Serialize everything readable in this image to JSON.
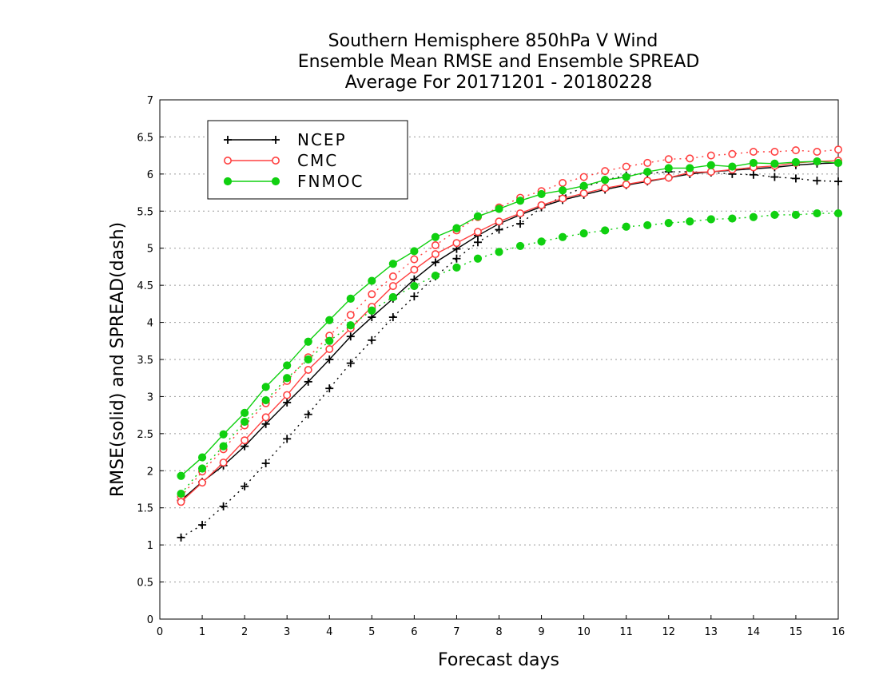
{
  "chart_data": {
    "type": "line",
    "title": [
      "Southern Hemisphere 850hPa V Wind",
      "Ensemble Mean RMSE and Ensemble SPREAD",
      "Average For 20171201 - 20180228"
    ],
    "xlabel": "Forecast days",
    "ylabel": "RMSE(solid) and SPREAD(dash)",
    "xlim": [
      0,
      16
    ],
    "ylim": [
      0,
      7
    ],
    "xticks": [
      "0",
      "1",
      "2",
      "3",
      "4",
      "5",
      "6",
      "7",
      "8",
      "9",
      "10",
      "11",
      "12",
      "13",
      "14",
      "15",
      "16"
    ],
    "yticks": [
      "0",
      "0.5",
      "1",
      "1.5",
      "2",
      "2.5",
      "3",
      "3.5",
      "4",
      "4.5",
      "5",
      "5.5",
      "6",
      "6.5",
      "7"
    ],
    "grid": true,
    "legend_position": "top-left",
    "x": [
      0.5,
      1,
      1.5,
      2,
      2.5,
      3,
      3.5,
      4,
      4.5,
      5,
      5.5,
      6,
      6.5,
      7,
      7.5,
      8,
      8.5,
      9,
      9.5,
      10,
      10.5,
      11,
      11.5,
      12,
      12.5,
      13,
      13.5,
      14,
      14.5,
      15,
      15.5,
      16
    ],
    "series": [
      {
        "name": "NCEP",
        "color": "#000000",
        "marker": "plus",
        "rmse": [
          1.6,
          1.85,
          2.07,
          2.33,
          2.63,
          2.92,
          3.2,
          3.5,
          3.81,
          4.07,
          4.32,
          4.58,
          4.81,
          4.99,
          5.17,
          5.33,
          5.45,
          5.56,
          5.65,
          5.72,
          5.79,
          5.85,
          5.9,
          5.95,
          6.0,
          6.03,
          6.05,
          6.07,
          6.09,
          6.12,
          6.14,
          6.15
        ],
        "spread": [
          1.1,
          1.27,
          1.52,
          1.79,
          2.1,
          2.43,
          2.76,
          3.11,
          3.45,
          3.76,
          4.07,
          4.35,
          4.62,
          4.86,
          5.08,
          5.25,
          5.33,
          5.55,
          5.7,
          5.82,
          5.92,
          5.98,
          6.01,
          6.03,
          6.03,
          6.02,
          6.0,
          5.99,
          5.96,
          5.94,
          5.91,
          5.9
        ]
      },
      {
        "name": "CMC",
        "color": "#ff4040",
        "marker": "open-circle",
        "rmse": [
          1.58,
          1.84,
          2.11,
          2.41,
          2.72,
          3.02,
          3.36,
          3.64,
          3.92,
          4.21,
          4.49,
          4.71,
          4.92,
          5.07,
          5.22,
          5.36,
          5.47,
          5.58,
          5.67,
          5.74,
          5.81,
          5.86,
          5.91,
          5.95,
          6.02,
          6.03,
          6.06,
          6.09,
          6.11,
          6.15,
          6.17,
          6.18
        ],
        "spread": [
          1.65,
          1.99,
          2.29,
          2.61,
          2.91,
          3.21,
          3.53,
          3.82,
          4.1,
          4.38,
          4.62,
          4.85,
          5.04,
          5.24,
          5.42,
          5.55,
          5.68,
          5.77,
          5.88,
          5.96,
          6.04,
          6.1,
          6.15,
          6.2,
          6.21,
          6.25,
          6.27,
          6.3,
          6.3,
          6.32,
          6.3,
          6.33
        ]
      },
      {
        "name": "FNMOC",
        "color": "#10d010",
        "marker": "filled-circle",
        "rmse": [
          1.93,
          2.18,
          2.49,
          2.78,
          3.13,
          3.42,
          3.74,
          4.03,
          4.32,
          4.56,
          4.79,
          4.96,
          5.15,
          5.27,
          5.43,
          5.53,
          5.64,
          5.73,
          5.78,
          5.84,
          5.92,
          5.96,
          6.03,
          6.08,
          6.08,
          6.12,
          6.1,
          6.15,
          6.14,
          6.16,
          6.17,
          6.15
        ],
        "spread": [
          1.69,
          2.03,
          2.33,
          2.66,
          2.95,
          3.25,
          3.5,
          3.75,
          3.96,
          4.16,
          4.34,
          4.49,
          4.63,
          4.74,
          4.86,
          4.95,
          5.03,
          5.09,
          5.15,
          5.2,
          5.24,
          5.29,
          5.31,
          5.34,
          5.36,
          5.39,
          5.4,
          5.42,
          5.45,
          5.45,
          5.47,
          5.47
        ]
      }
    ]
  }
}
